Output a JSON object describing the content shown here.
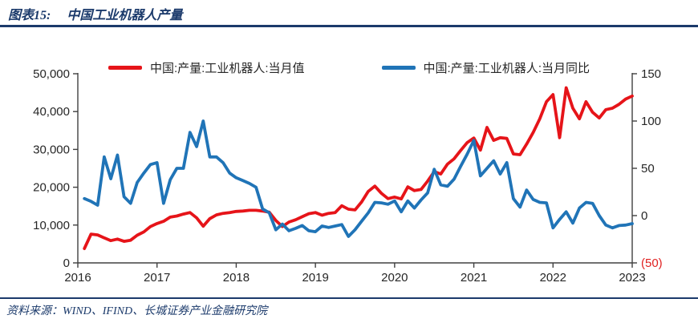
{
  "figure": {
    "label": "图表15:",
    "title": "中国工业机器人产量"
  },
  "source_text": "资料来源：WIND、IFIND、长城证券产业金融研究院",
  "colors": {
    "accent_navy": "#1b3a6b",
    "production_red": "#e61419",
    "yoy_blue": "#2074b7",
    "axis_line": "#404040",
    "axis_text": "#262626",
    "negative_tick_red": "#e02020"
  },
  "chart_data": {
    "type": "line",
    "title": "中国工业机器人产量",
    "grid": false,
    "legend_position": "top-center",
    "x_monthly_range": [
      "2016-02",
      "2023-01"
    ],
    "x_tick_labels": [
      "2016",
      "2017",
      "2018",
      "2019",
      "2020",
      "2021",
      "2022",
      "2023"
    ],
    "left_axis": {
      "ticks": [
        "0",
        "10,000",
        "20,000",
        "30,000",
        "40,000",
        "50,000"
      ],
      "values": [
        0,
        10000,
        20000,
        30000,
        40000,
        50000
      ],
      "range": [
        0,
        50000
      ]
    },
    "right_axis": {
      "ticks": [
        "(50)",
        "0",
        "50",
        "100",
        "150"
      ],
      "values": [
        -50,
        0,
        50,
        100,
        150
      ],
      "range": [
        -50,
        150
      ]
    },
    "series": [
      {
        "name": "中国:产量:工业机器人:当月值",
        "axis": "left",
        "color": "#e61419",
        "values": [
          3800,
          7600,
          7400,
          6600,
          5900,
          6300,
          5700,
          6000,
          7300,
          8200,
          9600,
          10400,
          11000,
          12100,
          12400,
          12900,
          13300,
          11900,
          9700,
          11700,
          12700,
          13100,
          13300,
          13600,
          13700,
          13900,
          13900,
          13700,
          13400,
          11200,
          9600,
          10800,
          11400,
          12200,
          13000,
          13300,
          12600,
          13100,
          13300,
          15100,
          14200,
          14000,
          16100,
          18900,
          20300,
          18400,
          17000,
          17400,
          16900,
          20100,
          19100,
          19400,
          21600,
          24100,
          23500,
          26100,
          27500,
          29700,
          31800,
          33000,
          29800,
          35800,
          32400,
          33100,
          32900,
          28800,
          28600,
          31400,
          34500,
          38100,
          42600,
          44500,
          33100,
          46300,
          40900,
          38100,
          42600,
          39800,
          38300,
          40500,
          40900,
          41900,
          43300,
          44100
        ]
      },
      {
        "name": "中国:产量:工业机器人:当月同比",
        "axis": "right",
        "color": "#2074b7",
        "values": [
          18,
          15,
          11,
          62,
          39,
          64,
          20,
          13,
          35,
          45,
          54,
          56,
          13,
          38,
          50,
          50,
          88,
          73,
          100,
          62,
          62,
          56,
          45,
          40,
          37,
          34,
          30,
          7,
          3,
          -15,
          -9,
          -16,
          -13.5,
          -10.5,
          -16,
          -17,
          -11,
          -12.5,
          -11,
          -9.5,
          -22,
          -15,
          -6,
          3,
          14,
          13.5,
          12,
          15.5,
          4,
          15.5,
          8,
          16.5,
          24,
          49,
          32.5,
          31,
          38.5,
          52,
          65,
          79.5,
          42,
          50,
          58,
          44,
          56,
          18,
          9,
          27,
          17,
          14,
          13.5,
          -13,
          -4,
          4,
          -8,
          8,
          14,
          13,
          0,
          -10,
          -13,
          -10.5,
          -10,
          -8.5
        ]
      }
    ]
  }
}
